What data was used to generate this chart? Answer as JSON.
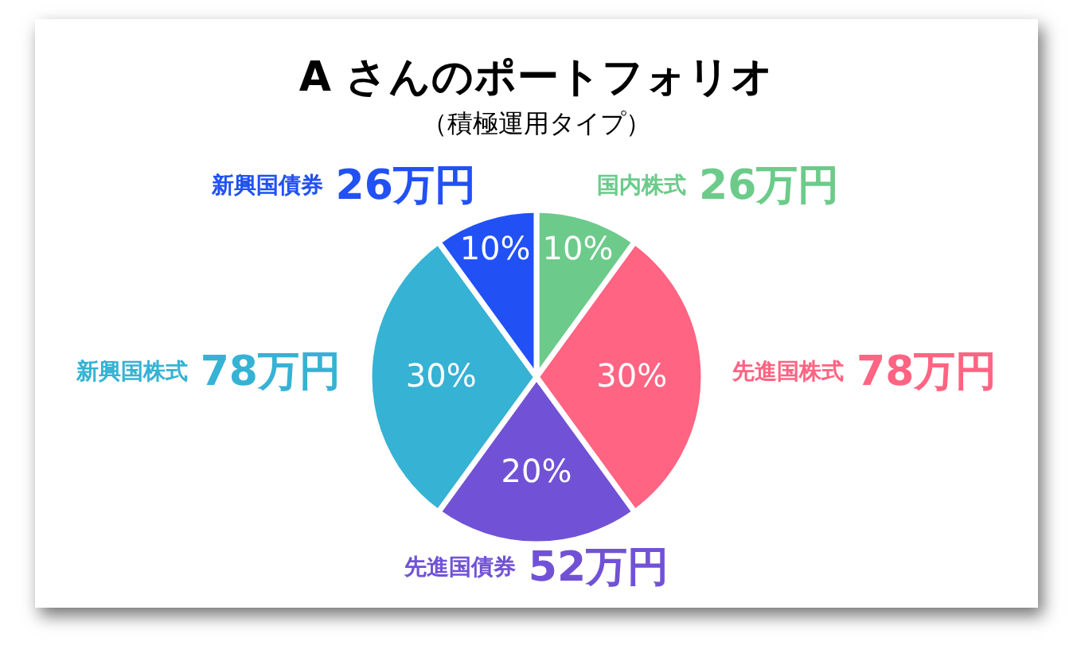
{
  "chart_data": {
    "type": "pie",
    "title": "A さんのポートフォリオ",
    "subtitle": "（積極運用タイプ）",
    "categories": [
      "国内株式",
      "先進国株式",
      "先進国債券",
      "新興国株式",
      "新興国債券"
    ],
    "values": [
      26,
      78,
      52,
      78,
      26
    ],
    "colors": [
      "#6ccb8a",
      "#ff6482",
      "#7152d6",
      "#36b2d4",
      "#2151f5"
    ],
    "value_labels": [
      "26万円",
      "78万円",
      "52万円",
      "78万円",
      "26万円"
    ],
    "annotations": [
      "10%",
      "30%",
      "20%",
      "30%",
      "10%"
    ]
  }
}
